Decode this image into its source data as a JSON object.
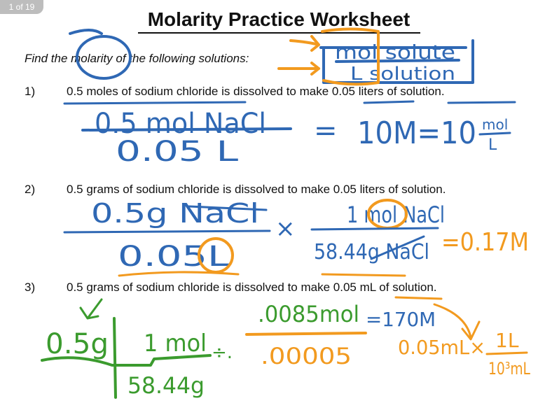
{
  "page_indicator": "1 of 19",
  "title": "Molarity Practice Worksheet",
  "instructions": "Find the molarity of the following solutions:",
  "problems": [
    {
      "number": "1)",
      "text": "0.5 moles of sodium chloride is dissolved to make 0.05 liters of solution."
    },
    {
      "number": "2)",
      "text": "0.5 grams of sodium chloride is dissolved to make 0.05 liters of solution."
    },
    {
      "number": "3)",
      "text": "0.5 grams of sodium chloride is dissolved to make 0.05 mL of solution."
    }
  ],
  "annotations": {
    "formula": {
      "numerator": "mol solute",
      "denominator": "L solution"
    },
    "p1": {
      "numerator": "0.5 mol NaCl",
      "denominator": "0.05 L",
      "equals": "=",
      "result": "10M=10",
      "unit_num": "mol",
      "unit_den": "L"
    },
    "p2": {
      "numerator": "0.5g NaCl",
      "denominator": "0.05L",
      "times": "×",
      "conv_num": "1 mol NaCl",
      "conv_den": "58.44g NaCl",
      "result": "=0.17M"
    },
    "p3": {
      "mass": "0.5g",
      "conv_num": "1 mol",
      "conv_den": "58.44g",
      "divide": "÷.",
      "moles": ".0085mol",
      "volume": ".00005",
      "result": "=170M",
      "conversion": "0.05mL×",
      "conv_frac_num": "1L",
      "conv_frac_den": "10³mL"
    }
  },
  "colors": {
    "blue": "#2f68b4",
    "orange": "#f29a1f",
    "green": "#3b9b2e"
  }
}
